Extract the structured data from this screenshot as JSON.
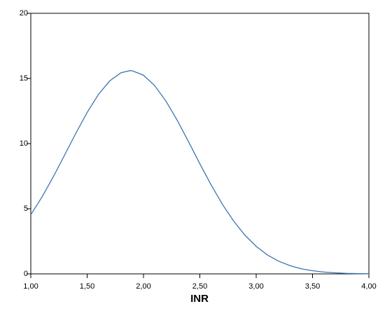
{
  "chart_data": {
    "type": "line",
    "xlabel": "INR",
    "x": [
      1.0,
      1.1,
      1.2,
      1.3,
      1.4,
      1.5,
      1.6,
      1.7,
      1.8,
      1.88,
      1.9,
      2.0,
      2.1,
      2.2,
      2.3,
      2.4,
      2.5,
      2.6,
      2.7,
      2.8,
      2.9,
      3.0,
      3.1,
      3.2,
      3.3,
      3.4,
      3.5,
      3.6,
      3.7,
      3.8,
      3.9,
      4.0
    ],
    "series": [
      {
        "color": "#3b74b1",
        "values": [
          4.54,
          5.91,
          7.46,
          9.12,
          10.8,
          12.39,
          13.77,
          14.81,
          15.44,
          15.6,
          15.59,
          15.25,
          14.44,
          13.25,
          11.78,
          10.14,
          8.45,
          6.83,
          5.34,
          4.05,
          2.97,
          2.11,
          1.45,
          0.97,
          0.63,
          0.39,
          0.24,
          0.14,
          0.08,
          0.04,
          0.02,
          0.01
        ]
      }
    ],
    "xlim": [
      1.0,
      4.0
    ],
    "xticks": [
      {
        "value": 1.0,
        "label": "1,00"
      },
      {
        "value": 1.5,
        "label": "1,50"
      },
      {
        "value": 2.0,
        "label": "2,00"
      },
      {
        "value": 2.5,
        "label": "2,50"
      },
      {
        "value": 3.0,
        "label": "3,00"
      },
      {
        "value": 3.5,
        "label": "3,50"
      },
      {
        "value": 4.0,
        "label": "4,00"
      }
    ],
    "ylim": [
      0,
      20
    ],
    "yticks": [
      0,
      5,
      10,
      15,
      20
    ]
  }
}
